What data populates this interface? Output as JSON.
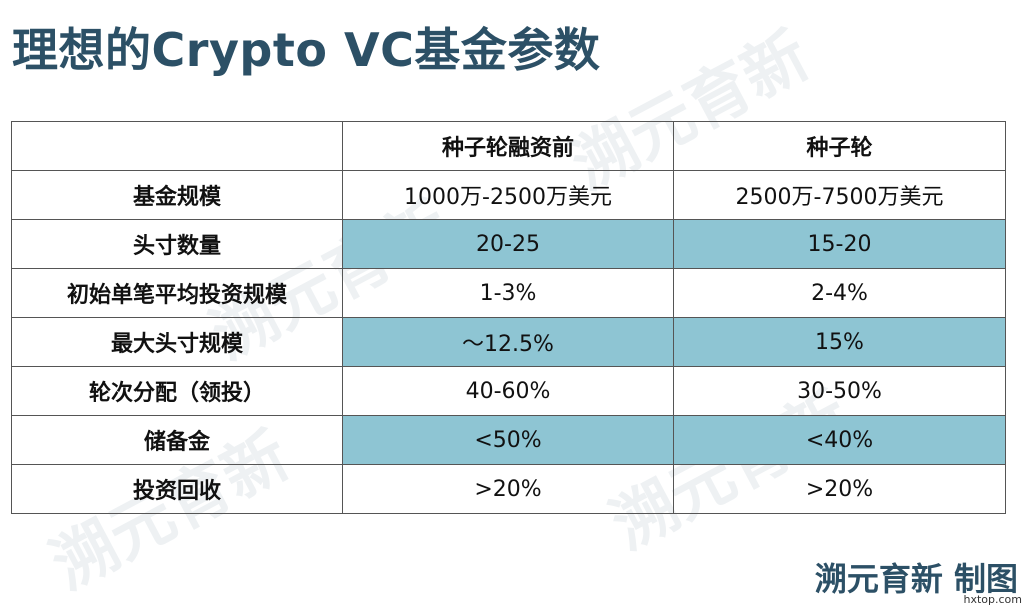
{
  "title": "理想的Crypto VC基金参数",
  "table": {
    "headers": [
      "",
      "种子轮融资前",
      "种子轮"
    ],
    "rows": [
      {
        "label": "基金规模",
        "values": [
          "1000万-2500万美元",
          "2500万-7500万美元"
        ]
      },
      {
        "label": "头寸数量",
        "values": [
          "20-25",
          "15-20"
        ]
      },
      {
        "label": "初始单笔平均投资规模",
        "values": [
          "1-3%",
          "2-4%"
        ]
      },
      {
        "label": "最大头寸规模",
        "values": [
          "～12.5%",
          "15%"
        ]
      },
      {
        "label": "轮次分配（领投）",
        "values": [
          "40-60%",
          "30-50%"
        ]
      },
      {
        "label": "储备金",
        "values": [
          "<50%",
          "<40%"
        ]
      },
      {
        "label": "投资回收",
        "values": [
          ">20%",
          ">20%"
        ]
      }
    ]
  },
  "footer": {
    "brand": "溯元育新 制图",
    "site": "hxtop.com"
  },
  "colors": {
    "title": "#2c5066",
    "shade": "#8ec5d3",
    "border": "#555555"
  }
}
